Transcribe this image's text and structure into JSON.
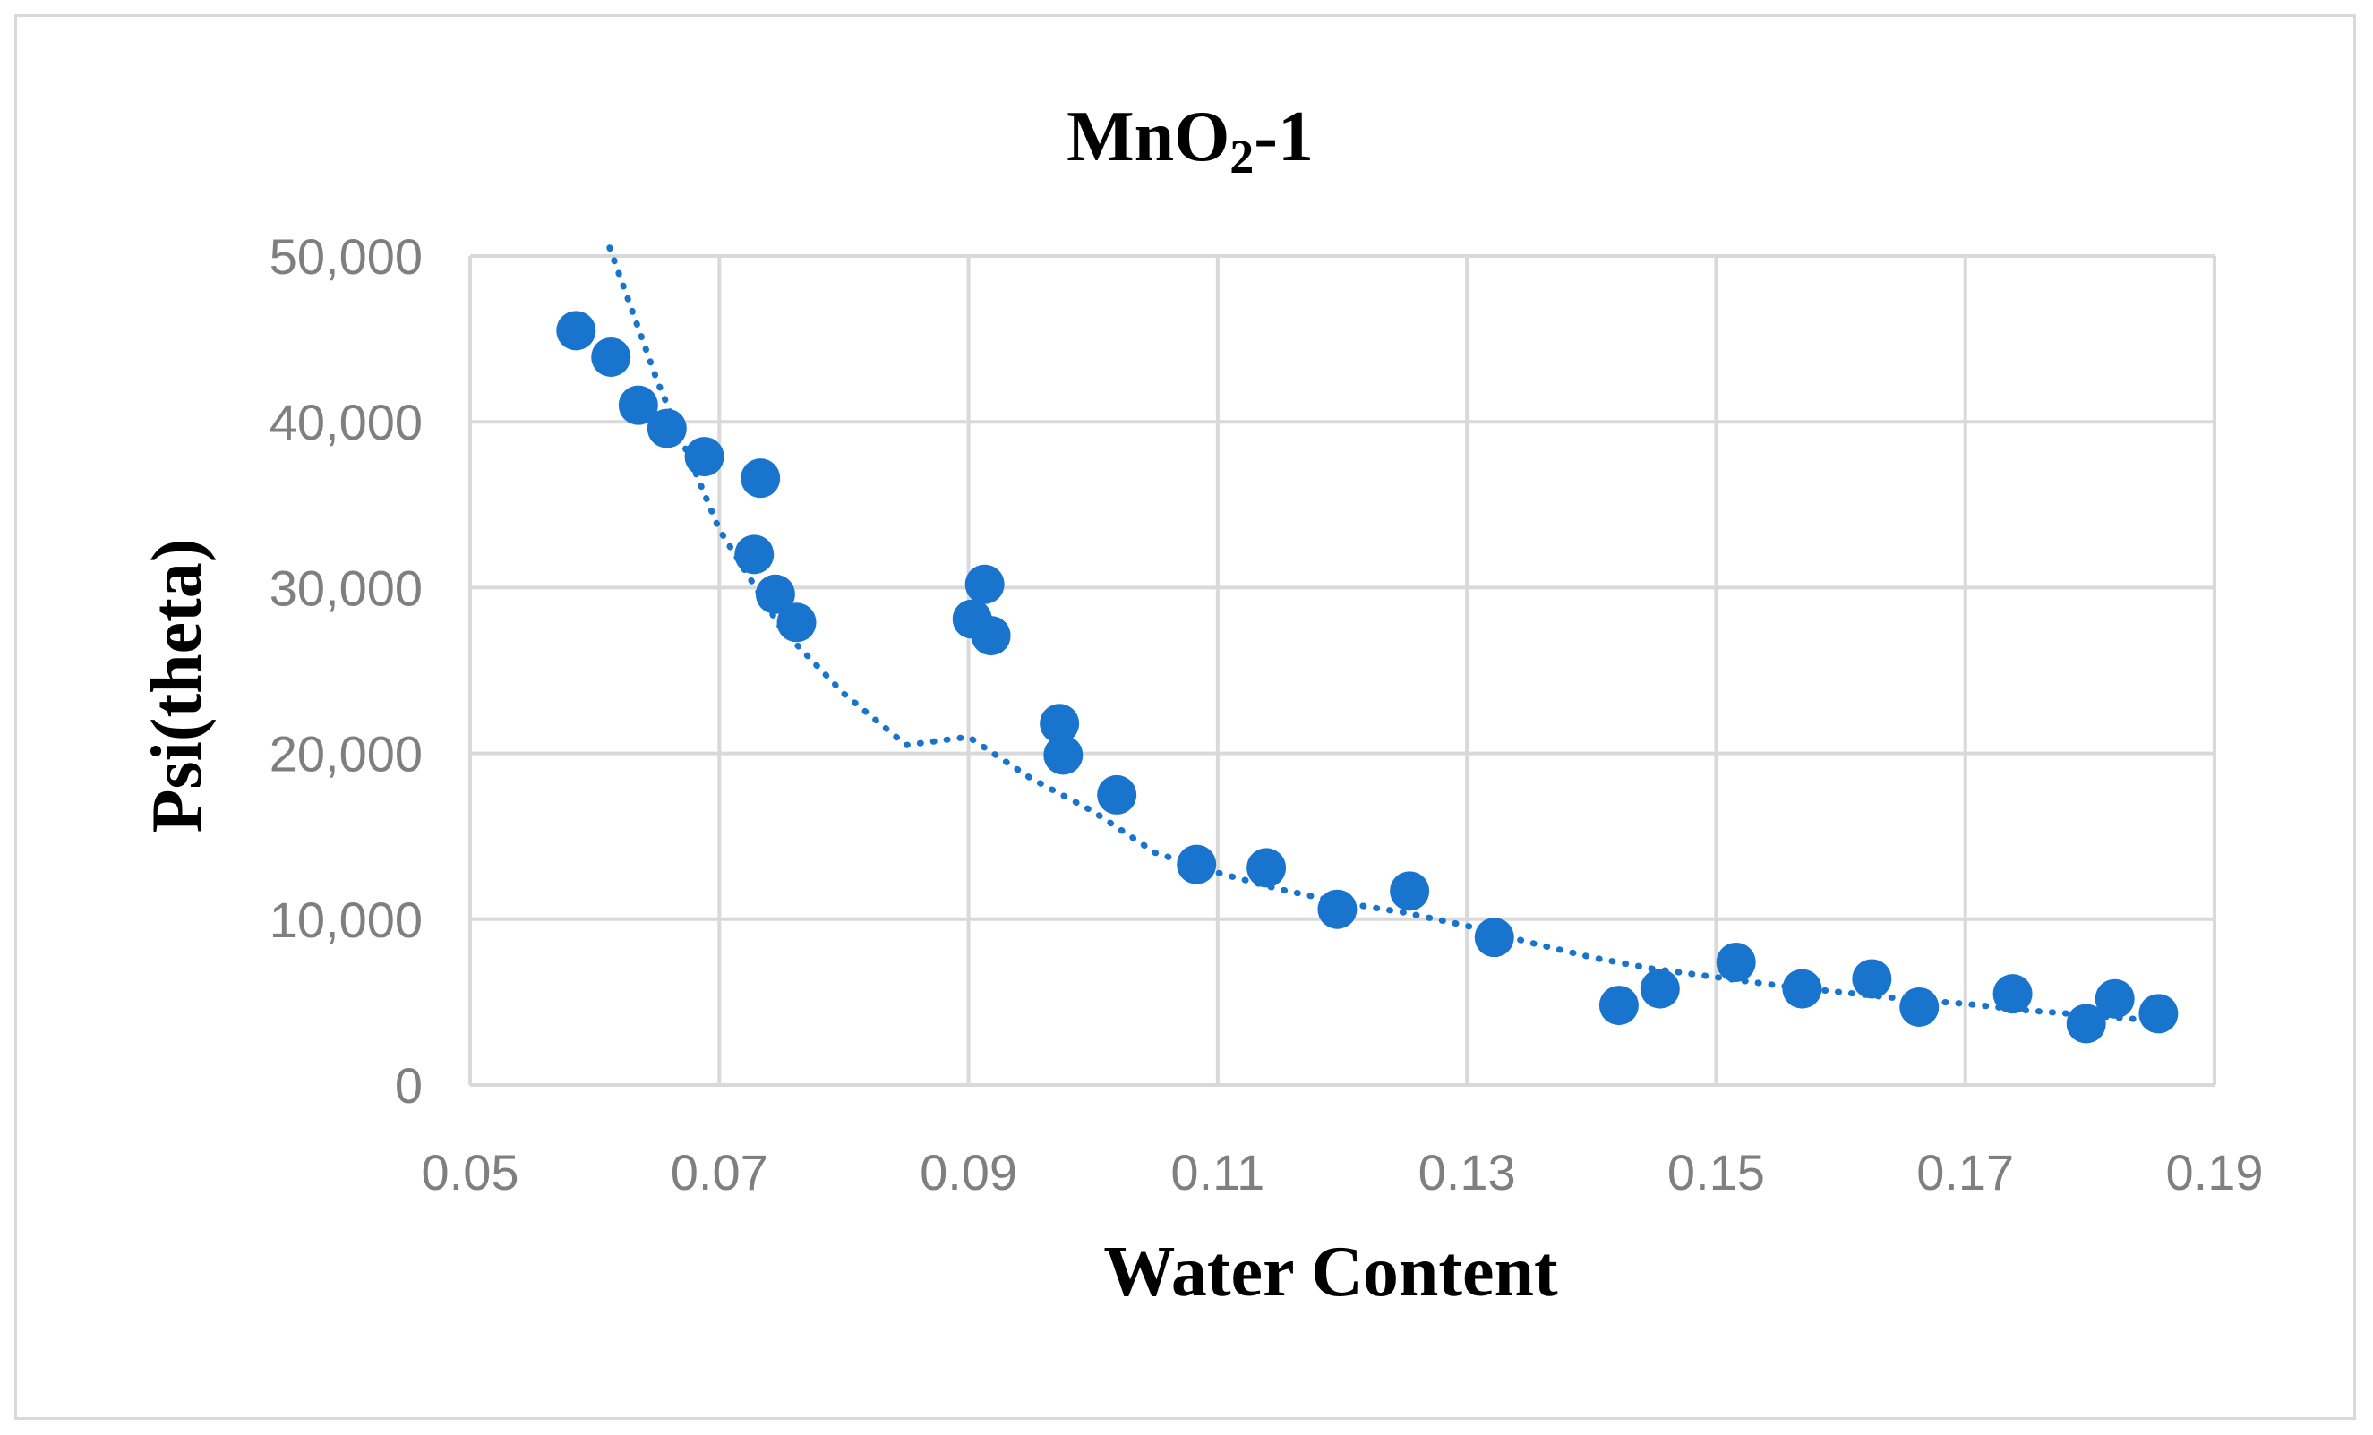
{
  "chart_data": {
    "type": "scatter",
    "title": "MnO",
    "title_subscript": "2",
    "title_suffix": "-1",
    "xlabel": "Water Content",
    "ylabel": "Psi(theta)",
    "xlim": [
      0.05,
      0.19
    ],
    "ylim": [
      0,
      50000
    ],
    "x_ticks": [
      "0.05",
      "0.07",
      "0.09",
      "0.11",
      "0.13",
      "0.15",
      "0.17",
      "0.19"
    ],
    "x_tick_values": [
      0.05,
      0.07,
      0.09,
      0.11,
      0.13,
      0.15,
      0.17,
      0.19
    ],
    "y_ticks": [
      "0",
      "10,000",
      "20,000",
      "30,000",
      "40,000",
      "50,000"
    ],
    "y_tick_values": [
      0,
      10000,
      20000,
      30000,
      40000,
      50000
    ],
    "grid": true,
    "color": "#1874cd",
    "series": [
      {
        "name": "Psi(theta)",
        "x": [
          0.0585,
          0.0613,
          0.0635,
          0.0658,
          0.0688,
          0.0733,
          0.0728,
          0.0745,
          0.0762,
          0.0903,
          0.0913,
          0.0918,
          0.0973,
          0.0976,
          0.1019,
          0.1083,
          0.1139,
          0.1196,
          0.1254,
          0.1322,
          0.1422,
          0.1455,
          0.1516,
          0.1569,
          0.1625,
          0.1663,
          0.1738,
          0.1797,
          0.182,
          0.1855
        ],
        "y": [
          45500,
          43900,
          41000,
          39600,
          37900,
          36600,
          32000,
          29600,
          27900,
          28100,
          30200,
          27100,
          21800,
          19900,
          17500,
          13300,
          13100,
          10600,
          11700,
          8900,
          4800,
          5800,
          7400,
          5800,
          6400,
          4700,
          5500,
          3700,
          5200,
          4300
        ]
      }
    ],
    "trendline": {
      "type": "power",
      "x": [
        0.0612,
        0.065,
        0.07,
        0.075,
        0.08,
        0.085,
        0.09,
        0.095,
        0.1,
        0.105,
        0.11,
        0.115,
        0.12,
        0.125,
        0.13,
        0.135,
        0.14,
        0.145,
        0.15,
        0.155,
        0.16,
        0.165,
        0.17,
        0.175,
        0.18,
        0.185
      ],
      "y": [
        50500,
        42500,
        33500,
        27500,
        23600,
        20500,
        21000,
        18500,
        16500,
        14000,
        12800,
        11800,
        11000,
        10400,
        9600,
        8600,
        7700,
        7000,
        6500,
        6000,
        5600,
        5200,
        4900,
        4500,
        4200,
        3900
      ]
    }
  }
}
